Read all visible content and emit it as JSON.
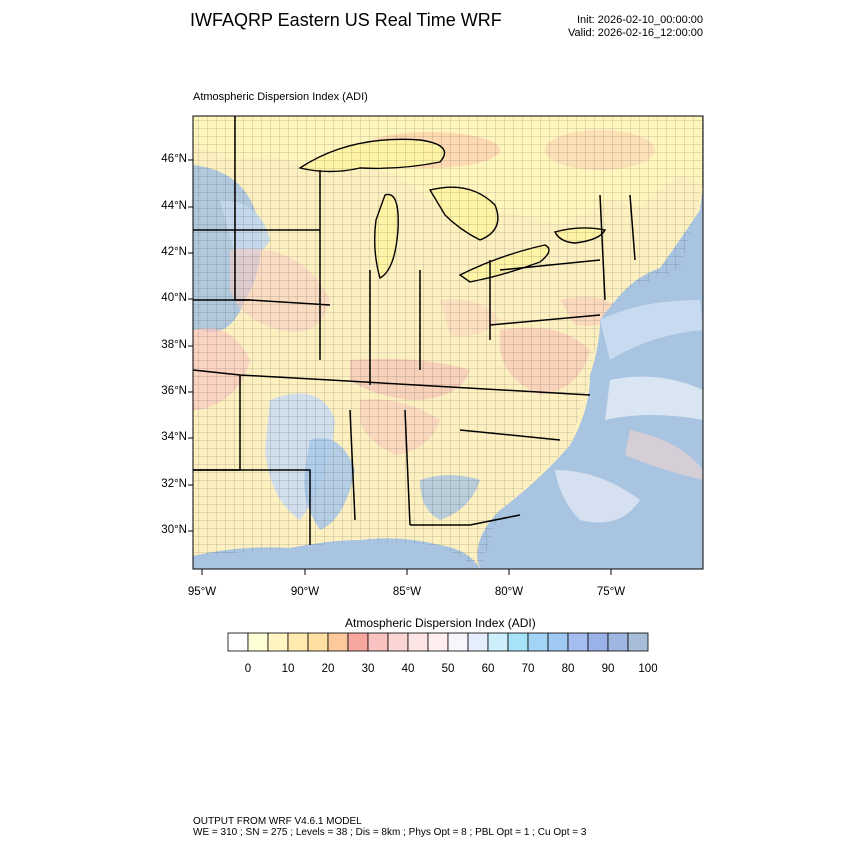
{
  "header": {
    "title": "IWFAQRP Eastern US Real Time WRF",
    "init": "Init: 2026-02-10_00:00:00",
    "valid": "Valid: 2026-02-16_12:00:00"
  },
  "map": {
    "subtitle": "Atmospheric Dispersion Index   (ADI)",
    "lat_labels": [
      "46°N",
      "44°N",
      "42°N",
      "40°N",
      "38°N",
      "36°N",
      "34°N",
      "32°N",
      "30°N"
    ],
    "lon_labels": [
      "95°W",
      "90°W",
      "85°W",
      "80°W",
      "75°W"
    ],
    "colors": {
      "land_base": "#fdf0c0",
      "water_light": "#fff1a8",
      "ocean_blue": "#a9c4e0",
      "border": "#000000"
    }
  },
  "colorbar": {
    "title": "Atmospheric Dispersion Index  (ADI)",
    "labels": [
      "0",
      "10",
      "20",
      "30",
      "40",
      "50",
      "60",
      "70",
      "80",
      "90",
      "100"
    ],
    "colors": [
      "#ffffff",
      "#ffffd6",
      "#fff4c2",
      "#ffeab0",
      "#ffe0a0",
      "#fdc99a",
      "#f6a8a0",
      "#f8c2c0",
      "#fbd5d3",
      "#fde5e5",
      "#ffeeee",
      "#f6f6fc",
      "#e4eefc",
      "#cdeefb",
      "#a6e3f8",
      "#a3d3f5",
      "#9fc8f3",
      "#a6bdf0",
      "#9ab2e8",
      "#9fb6e0",
      "#a8bed8"
    ]
  },
  "footer": {
    "line1": "OUTPUT FROM WRF V4.6.1 MODEL",
    "line2": "WE = 310 ; SN = 275 ; Levels = 38 ; Dis = 8km ; Phys Opt = 8 ; PBL Opt = 1 ; Cu Opt = 3"
  }
}
